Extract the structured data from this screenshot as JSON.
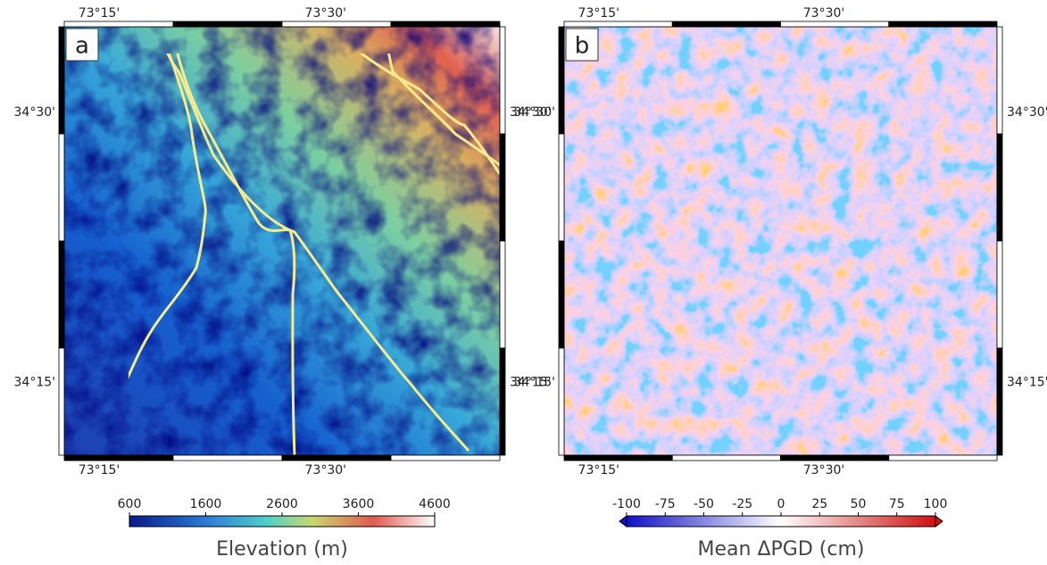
{
  "panels": [
    {
      "label": "a",
      "lon_ticks": [
        "73°15'",
        "73°30'"
      ],
      "lat_ticks": [
        "34°30'",
        "34°15'"
      ],
      "colorbar": {
        "title": "Elevation (m)",
        "ticks": [
          600,
          1600,
          2600,
          3600,
          4600
        ]
      }
    },
    {
      "label": "b",
      "lon_ticks": [
        "73°15'",
        "73°30'"
      ],
      "lat_ticks": [
        "34°30'",
        "34°15'"
      ],
      "colorbar": {
        "title": "Mean ΔPGD (cm)",
        "ticks": [
          -100,
          -75,
          -50,
          -25,
          0,
          25,
          50,
          75,
          100
        ]
      }
    }
  ]
}
